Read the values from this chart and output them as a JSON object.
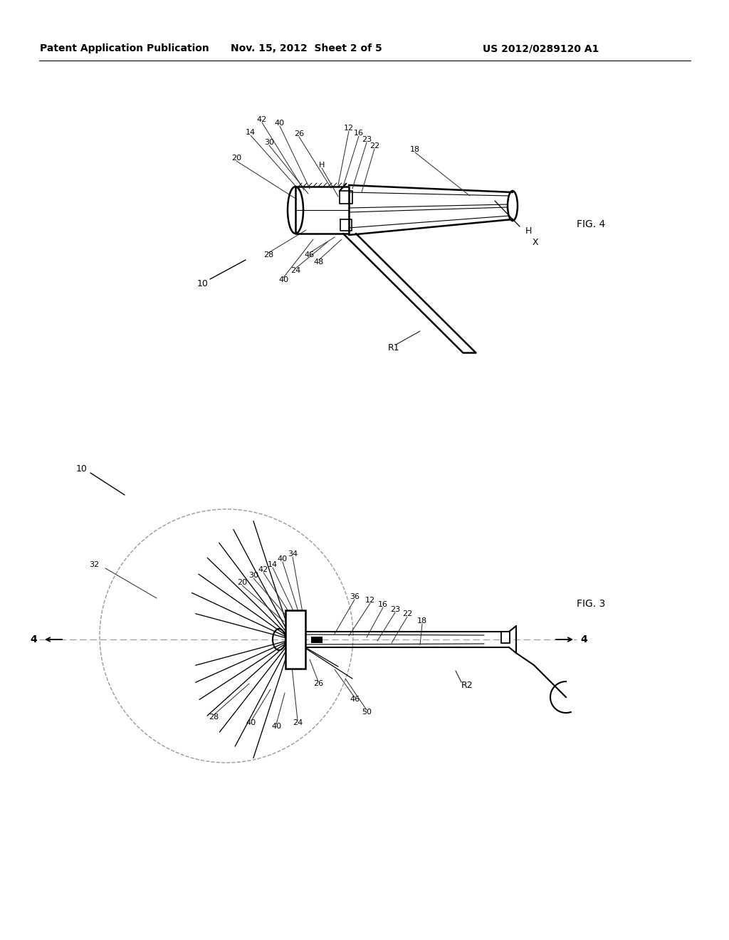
{
  "background_color": "#ffffff",
  "header_left": "Patent Application Publication",
  "header_mid": "Nov. 15, 2012  Sheet 2 of 5",
  "header_right": "US 2012/0289120 A1",
  "fig4_label": "FIG. 4",
  "fig3_label": "FIG. 3",
  "line_color": "#000000",
  "dashed_color": "#aaaaaa",
  "lw_main": 1.5,
  "lw_thin": 0.9,
  "lw_leader": 0.8
}
